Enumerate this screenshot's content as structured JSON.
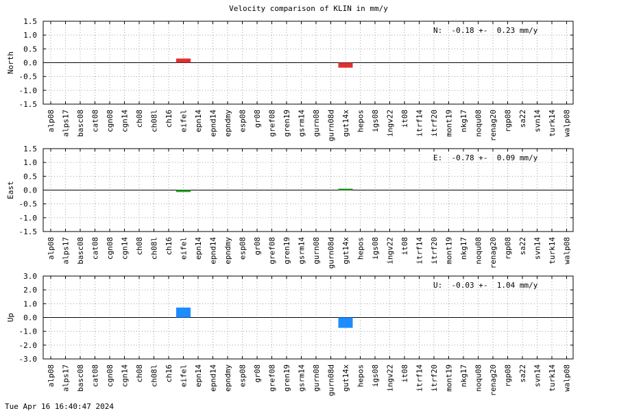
{
  "title": "Velocity comparison of KLIN in mm/y",
  "footer": "Tue Apr 16 16:40:47 2024",
  "colors": {
    "north": "#e03030",
    "east": "#22a022",
    "up": "#1e8cff",
    "grid": "#a0a0a0"
  },
  "chart_data": [
    {
      "type": "bar",
      "ylabel": "North",
      "ylim": [
        -1.5,
        1.5
      ],
      "yticks": [
        "1.5",
        "1.0",
        "0.5",
        "0.0",
        "-0.5",
        "-1.0",
        "-1.5"
      ],
      "ytick_values": [
        1.5,
        1.0,
        0.5,
        0.0,
        -0.5,
        -1.0,
        -1.5
      ],
      "grid": true,
      "annotation": "N:  -0.18 +-  0.23 mm/y",
      "categories": [
        "alp08",
        "alps17",
        "basc08",
        "cat08",
        "cgn08",
        "cgn14",
        "ch08",
        "ch08l",
        "ch16",
        "eifel",
        "epn14",
        "epnd14",
        "epndmy",
        "esp08",
        "gr08",
        "gref08",
        "gren19",
        "gsrm14",
        "gurn08",
        "gurn08d",
        "gut14x",
        "hepos",
        "igs08",
        "ingv22",
        "it08",
        "itrf14",
        "itrf20",
        "mont19",
        "nkg17",
        "noqu08",
        "renag20",
        "rgp08",
        "sa22",
        "svn14",
        "turk14",
        "walp08"
      ],
      "bars": [
        {
          "category": "eifel",
          "low": 0.0,
          "high": 0.15
        },
        {
          "category": "gut14x",
          "low": -0.18,
          "high": 0.0
        }
      ]
    },
    {
      "type": "bar",
      "ylabel": "East",
      "ylim": [
        -1.5,
        1.5
      ],
      "yticks": [
        "1.5",
        "1.0",
        "0.5",
        "0.0",
        "-0.5",
        "-1.0",
        "-1.5"
      ],
      "ytick_values": [
        1.5,
        1.0,
        0.5,
        0.0,
        -0.5,
        -1.0,
        -1.5
      ],
      "grid": true,
      "annotation": "E:  -0.78 +-  0.09 mm/y",
      "categories": [
        "alp08",
        "alps17",
        "basc08",
        "cat08",
        "cgn08",
        "cgn14",
        "ch08",
        "ch08l",
        "ch16",
        "eifel",
        "epn14",
        "epnd14",
        "epndmy",
        "esp08",
        "gr08",
        "gref08",
        "gren19",
        "gsrm14",
        "gurn08",
        "gurn08d",
        "gut14x",
        "hepos",
        "igs08",
        "ingv22",
        "it08",
        "itrf14",
        "itrf20",
        "mont19",
        "nkg17",
        "noqu08",
        "renag20",
        "rgp08",
        "sa22",
        "svn14",
        "turk14",
        "walp08"
      ],
      "bars": [
        {
          "category": "eifel",
          "low": -0.07,
          "high": 0.0
        },
        {
          "category": "gut14x",
          "low": 0.0,
          "high": 0.05
        }
      ]
    },
    {
      "type": "bar",
      "ylabel": "Up",
      "ylim": [
        -3.0,
        3.0
      ],
      "yticks": [
        "3.0",
        "2.0",
        "1.0",
        "0.0",
        "-1.0",
        "-2.0",
        "-3.0"
      ],
      "ytick_values": [
        3.0,
        2.0,
        1.0,
        0.0,
        -1.0,
        -2.0,
        -3.0
      ],
      "grid": true,
      "annotation": "U:  -0.03 +-  1.04 mm/y",
      "categories": [
        "alp08",
        "alps17",
        "basc08",
        "cat08",
        "cgn08",
        "cgn14",
        "ch08",
        "ch08l",
        "ch16",
        "eifel",
        "epn14",
        "epnd14",
        "epndmy",
        "esp08",
        "gr08",
        "gref08",
        "gren19",
        "gsrm14",
        "gurn08",
        "gurn08d",
        "gut14x",
        "hepos",
        "igs08",
        "ingv22",
        "it08",
        "itrf14",
        "itrf20",
        "mont19",
        "nkg17",
        "noqu08",
        "renag20",
        "rgp08",
        "sa22",
        "svn14",
        "turk14",
        "walp08"
      ],
      "bars": [
        {
          "category": "eifel",
          "low": 0.0,
          "high": 0.72
        },
        {
          "category": "gut14x",
          "low": -0.75,
          "high": 0.0
        }
      ]
    }
  ]
}
